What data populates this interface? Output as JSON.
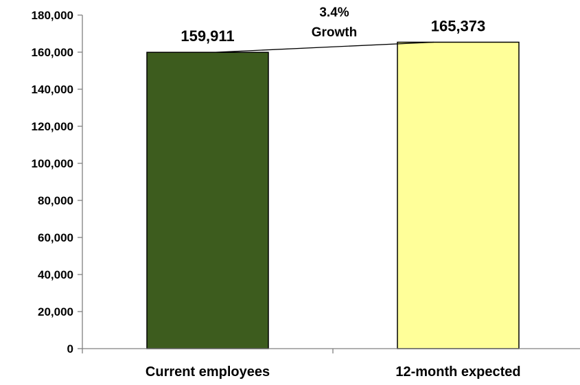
{
  "chart_data": {
    "type": "bar",
    "categories": [
      "Current employees",
      "12-month expected"
    ],
    "values": [
      159911,
      165373
    ],
    "data_labels": [
      "159,911",
      "165,373"
    ],
    "ylim": [
      0,
      180000
    ],
    "y_ticks": [
      0,
      20000,
      40000,
      60000,
      80000,
      100000,
      120000,
      140000,
      160000,
      180000
    ],
    "y_tick_labels": [
      "0",
      "20,000",
      "40,000",
      "60,000",
      "80,000",
      "100,000",
      "120,000",
      "140,000",
      "160,000",
      "180,000"
    ],
    "bar_colors": [
      "#3d5c1e",
      "#ffff99"
    ],
    "bar_outline": "#000000",
    "grid": false,
    "annotation": {
      "line1": "3.4%",
      "line2": "Growth",
      "connects": [
        "Current employees",
        "12-month expected"
      ]
    }
  }
}
